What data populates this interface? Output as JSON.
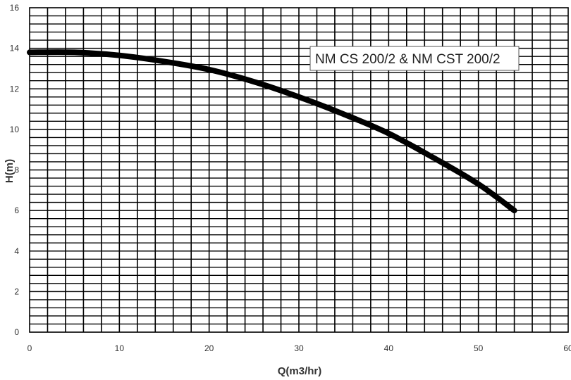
{
  "chart_data": {
    "type": "line",
    "title": "",
    "xlabel": "Q(m3/hr)",
    "ylabel": "H(m)",
    "xlim": [
      0,
      60
    ],
    "ylim": [
      0,
      16
    ],
    "x_ticks": [
      "0",
      "10",
      "20",
      "30",
      "40",
      "50",
      "60"
    ],
    "y_ticks": [
      "0",
      "2",
      "4",
      "6",
      "8",
      "10",
      "12",
      "14",
      "16"
    ],
    "grid": true,
    "legend_position": "top-right",
    "series": [
      {
        "name": "NM CS 200/2 & NM CST 200/2",
        "color": "#000000",
        "points": [
          [
            0,
            13.8
          ],
          [
            5,
            13.8
          ],
          [
            10,
            13.65
          ],
          [
            15,
            13.35
          ],
          [
            20,
            12.95
          ],
          [
            25,
            12.35
          ],
          [
            30,
            11.6
          ],
          [
            35,
            10.75
          ],
          [
            40,
            9.8
          ],
          [
            45,
            8.6
          ],
          [
            50,
            7.3
          ],
          [
            54,
            6.0
          ]
        ]
      }
    ]
  }
}
